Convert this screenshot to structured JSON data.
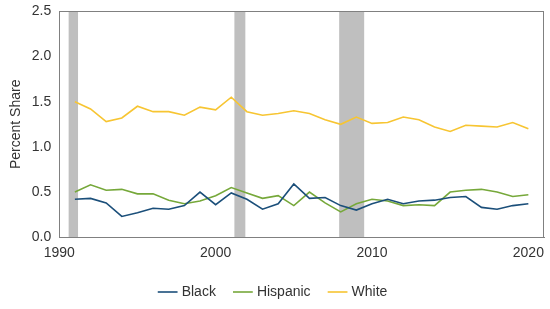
{
  "chart_data": {
    "type": "line",
    "ylabel": "Percent Share",
    "x": [
      1991,
      1992,
      1993,
      1994,
      1995,
      1996,
      1997,
      1998,
      1999,
      2000,
      2001,
      2002,
      2003,
      2004,
      2005,
      2006,
      2007,
      2008,
      2009,
      2010,
      2011,
      2012,
      2013,
      2014,
      2015,
      2016,
      2017,
      2018,
      2019,
      2020
    ],
    "series": [
      {
        "name": "Black",
        "color": "#1b4f7a",
        "values": [
          0.42,
          0.43,
          0.38,
          0.23,
          0.27,
          0.32,
          0.31,
          0.35,
          0.5,
          0.36,
          0.49,
          0.42,
          0.31,
          0.37,
          0.59,
          0.43,
          0.44,
          0.35,
          0.3,
          0.37,
          0.42,
          0.37,
          0.4,
          0.41,
          0.44,
          0.45,
          0.33,
          0.31,
          0.35,
          0.37
        ]
      },
      {
        "name": "Hispanic",
        "color": "#76a83a",
        "values": [
          0.5,
          0.58,
          0.52,
          0.53,
          0.48,
          0.48,
          0.41,
          0.37,
          0.4,
          0.46,
          0.55,
          0.49,
          0.43,
          0.46,
          0.35,
          0.5,
          0.38,
          0.28,
          0.37,
          0.42,
          0.4,
          0.35,
          0.36,
          0.35,
          0.5,
          0.52,
          0.53,
          0.5,
          0.45,
          0.47
        ]
      },
      {
        "name": "White",
        "color": "#f7c532",
        "values": [
          1.5,
          1.42,
          1.28,
          1.32,
          1.45,
          1.39,
          1.39,
          1.35,
          1.44,
          1.41,
          1.55,
          1.39,
          1.35,
          1.37,
          1.4,
          1.37,
          1.3,
          1.25,
          1.33,
          1.26,
          1.27,
          1.33,
          1.3,
          1.22,
          1.17,
          1.24,
          1.23,
          1.22,
          1.27,
          1.2
        ]
      }
    ],
    "shaded_periods": [
      [
        1990.6,
        1991.2
      ],
      [
        2001.2,
        2001.9
      ],
      [
        2007.9,
        2009.5
      ]
    ],
    "xlim": [
      1990,
      2021
    ],
    "xticks": [
      1990,
      2000,
      2010,
      2020
    ],
    "ylim": [
      0,
      2.5
    ],
    "yticks": [
      {
        "value": 0,
        "label": "0.0"
      },
      0.5,
      {
        "value": 1,
        "label": "1.0"
      },
      1.5,
      {
        "value": 2,
        "label": "2.0"
      },
      2.5
    ],
    "grid": false,
    "legend": "bottom"
  }
}
